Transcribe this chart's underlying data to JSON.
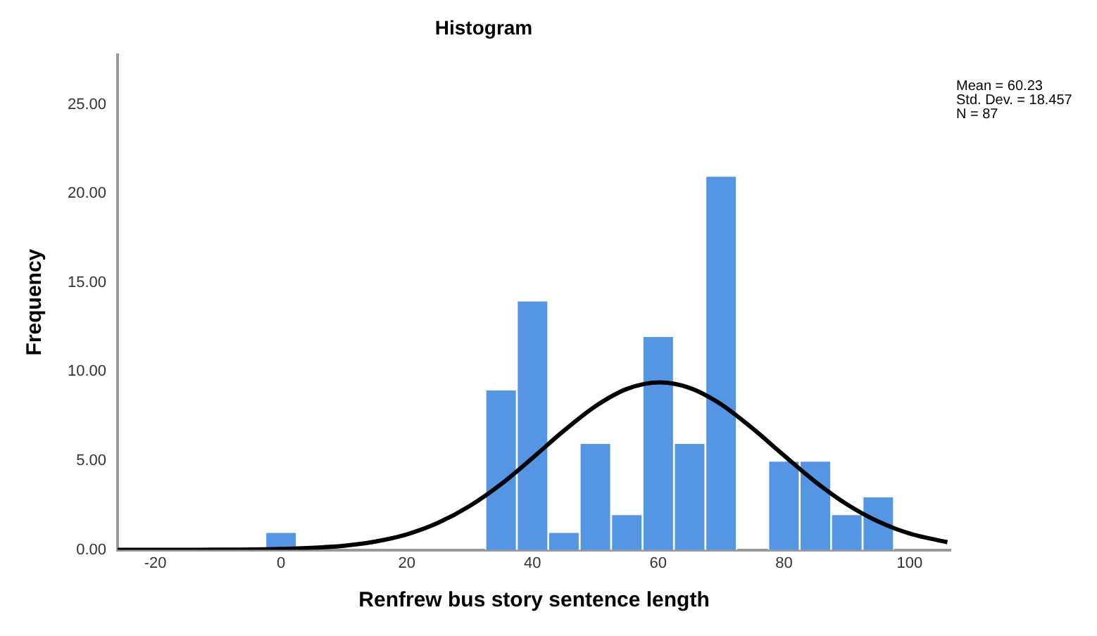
{
  "chart_data": {
    "type": "histogram",
    "title": "Histogram",
    "xlabel": "Renfrew bus story sentence length",
    "ylabel": "Frequency",
    "bins": [
      -2.5,
      2.5,
      7.5,
      12.5,
      17.5,
      22.5,
      27.5,
      32.5,
      37.5,
      42.5,
      47.5,
      52.5,
      57.5,
      62.5,
      67.5,
      72.5,
      77.5,
      82.5,
      87.5,
      92.5,
      97.5
    ],
    "values": [
      1,
      0,
      0,
      0,
      0,
      0,
      0,
      9,
      14,
      1,
      6,
      2,
      12,
      6,
      21,
      0,
      5,
      5,
      2,
      3
    ],
    "color": "#5596e4",
    "series": [
      {
        "type": "line",
        "color": "#000000",
        "x": [
          -26,
          -10,
          0,
          10,
          15,
          20,
          25,
          30,
          35,
          40,
          45,
          50,
          55,
          60.23,
          65,
          70,
          75,
          80,
          85,
          90,
          95,
          100,
          106
        ],
        "values": [
          0,
          0.01,
          0.05,
          0.23,
          0.47,
          0.87,
          1.52,
          2.46,
          3.69,
          5.16,
          6.69,
          8.06,
          9.03,
          9.4,
          9.09,
          8.17,
          6.82,
          5.3,
          3.82,
          2.56,
          1.59,
          0.92,
          0.43
        ]
      }
    ],
    "xlim": [
      -26,
      106.5
    ],
    "xticks": [
      -20,
      0,
      20,
      40,
      60,
      80,
      100
    ],
    "ylim": [
      0,
      27.8
    ],
    "yticks": [
      {
        "value": 0,
        "label": "0.00"
      },
      {
        "value": 5,
        "label": "5.00"
      },
      {
        "value": 10,
        "label": "10.00"
      },
      {
        "value": 15,
        "label": "15.00"
      },
      {
        "value": 20,
        "label": "20.00"
      },
      {
        "value": 25,
        "label": "25.00"
      }
    ],
    "grid": false,
    "legend": false,
    "marker": "none",
    "line_style": "solid",
    "annotations": [
      "Mean = 60.23",
      "Std. Dev. = 18.457",
      "N = 87"
    ]
  }
}
